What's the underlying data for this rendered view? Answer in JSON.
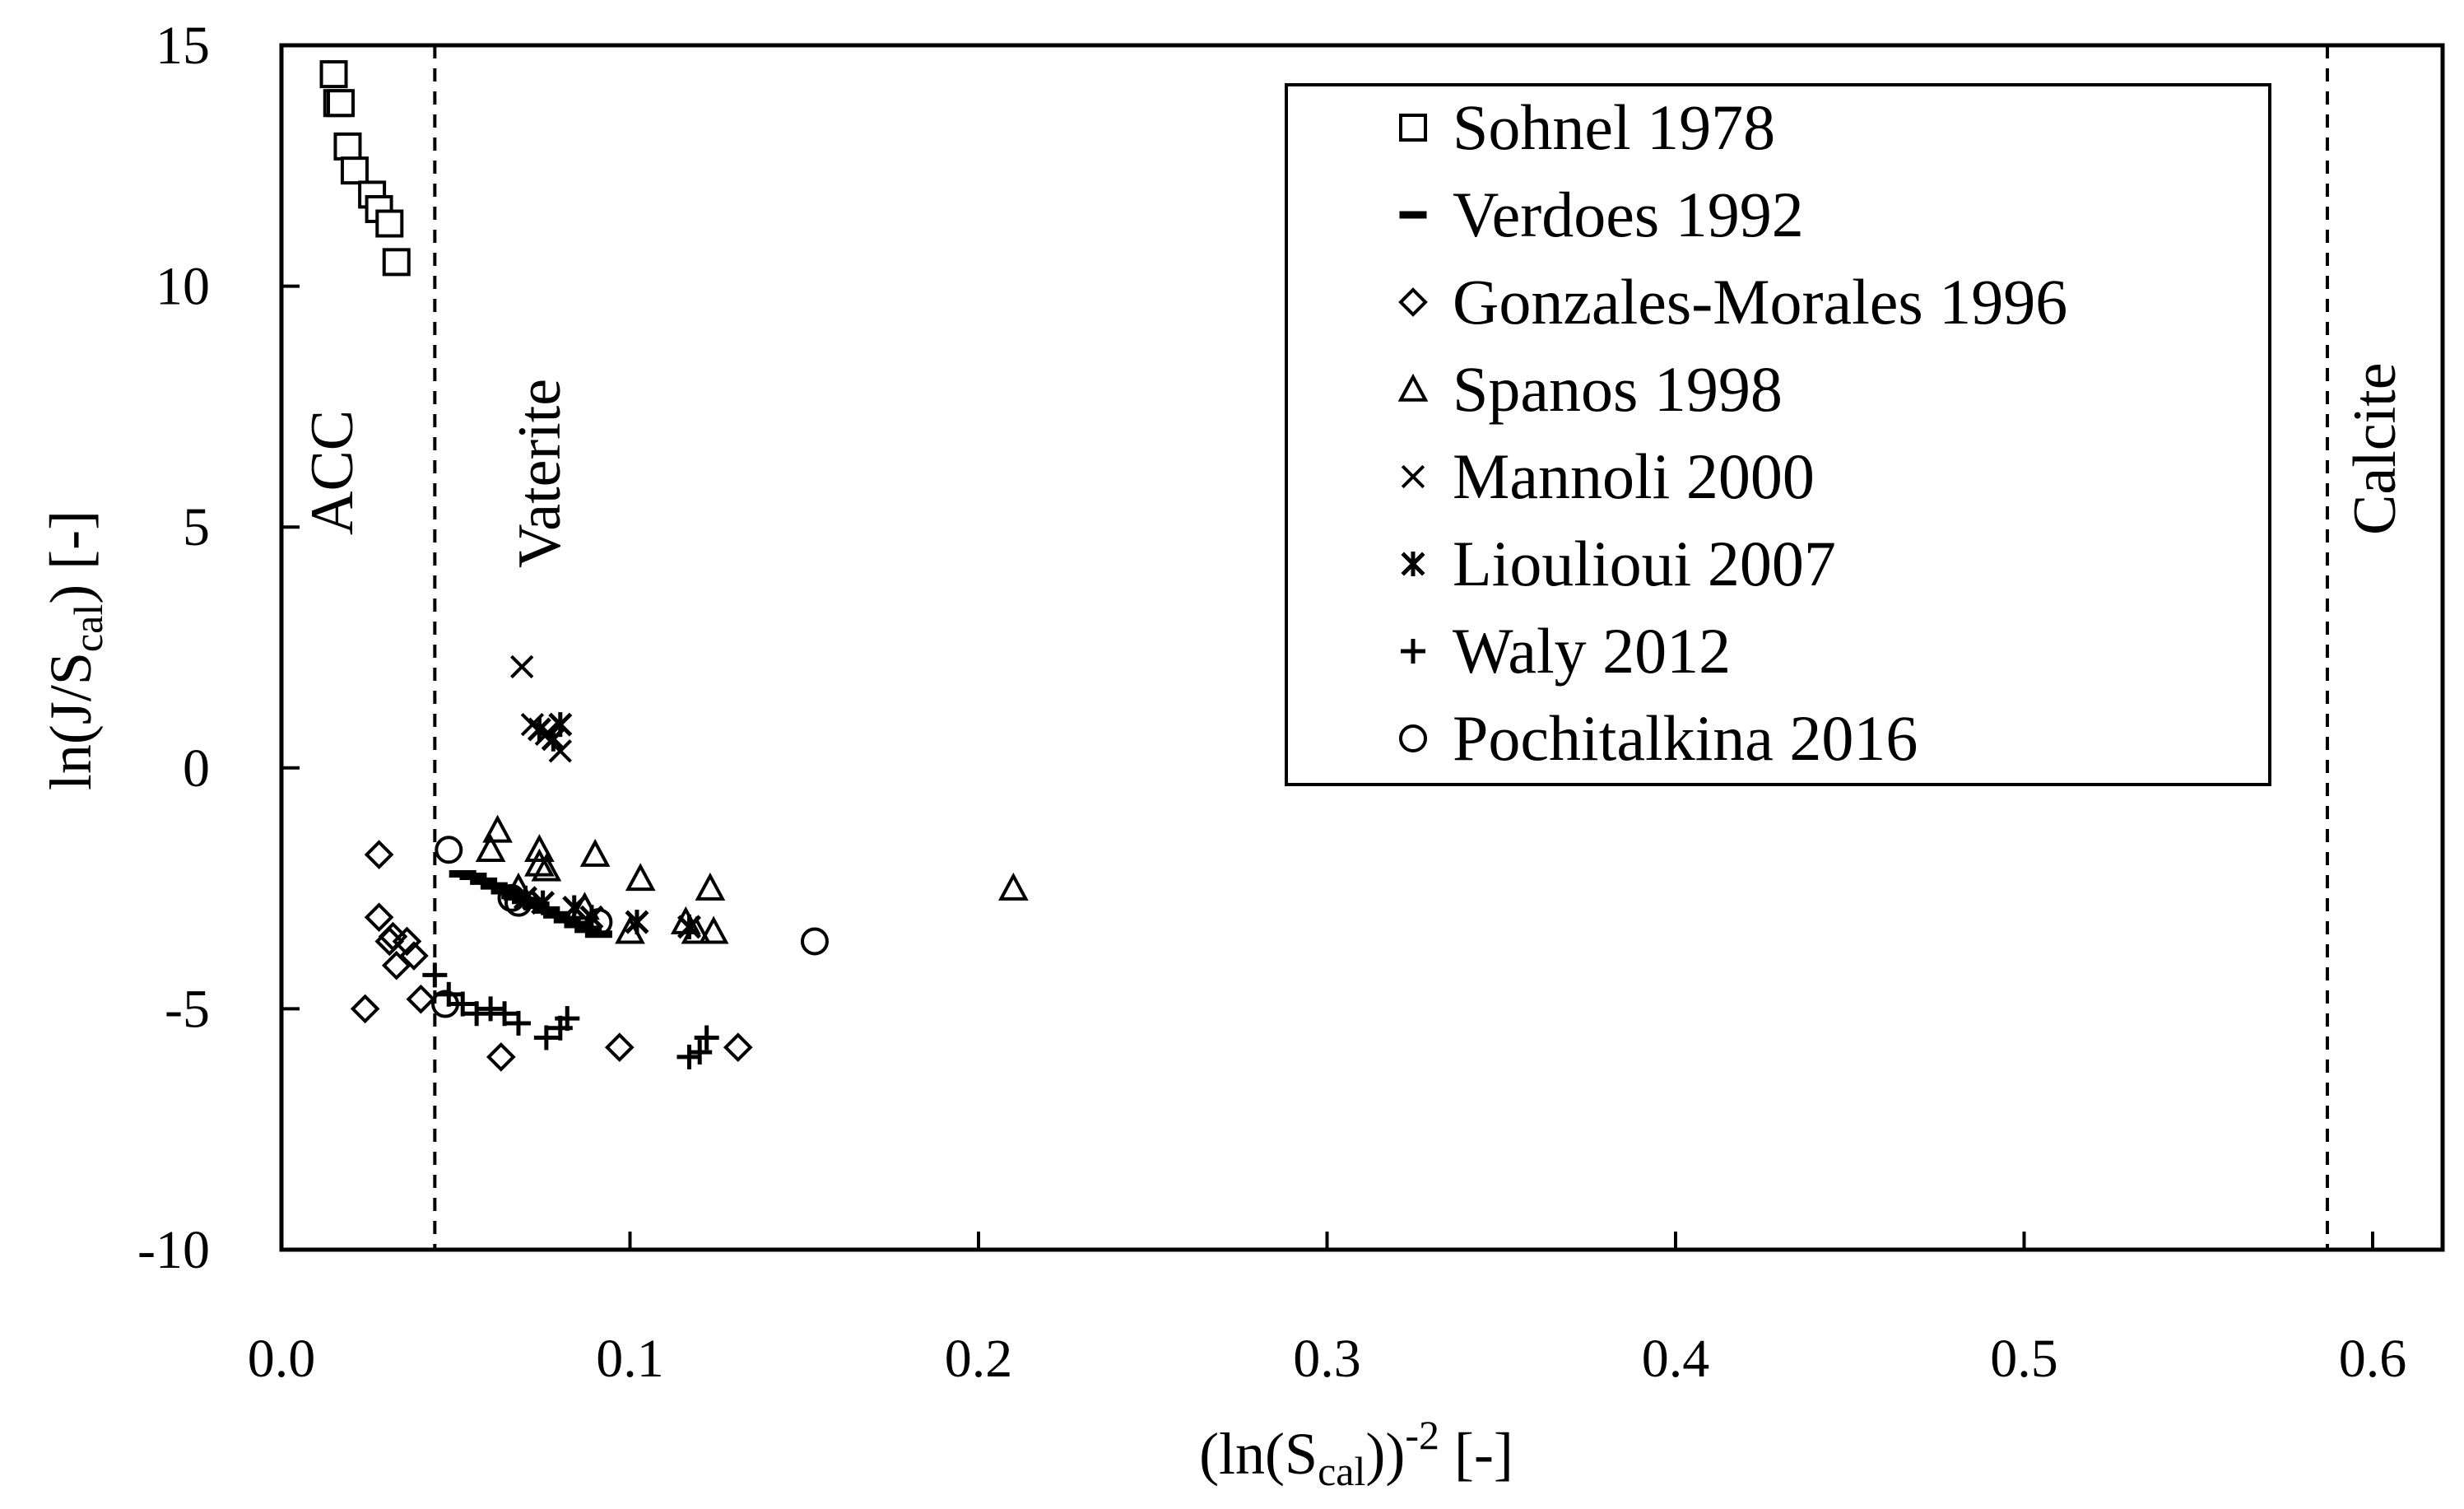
{
  "chart_data": {
    "type": "scatter",
    "title": "",
    "xlabel": "(ln(S_cal))^-2 [-]",
    "ylabel": "ln(J/S_cal) [-]",
    "xlim": [
      0.0,
      0.62
    ],
    "ylim": [
      -10,
      15
    ],
    "xticks": [
      "0.0",
      "0.1",
      "0.2",
      "0.3",
      "0.4",
      "0.5",
      "0.6"
    ],
    "xtick_values": [
      0.0,
      0.1,
      0.2,
      0.3,
      0.4,
      0.5,
      0.6
    ],
    "yticks": [
      "15",
      "10",
      "5",
      "0",
      "-5",
      "-10"
    ],
    "ytick_values": [
      15,
      10,
      5,
      0,
      -5,
      -10
    ],
    "grid": false,
    "legend_position": "top-right",
    "vlines": [
      {
        "x": 0.044,
        "label": "ACC",
        "style": "dashed"
      },
      {
        "x": 0.587,
        "label": "Calcite",
        "style": "dashed"
      }
    ],
    "region_labels": [
      "ACC",
      "Vaterite",
      "Calcite"
    ],
    "series": [
      {
        "name": "Sohnel 1978",
        "marker": "square",
        "x": [
          0.015,
          0.016,
          0.017,
          0.019,
          0.021,
          0.026,
          0.028,
          0.031,
          0.033
        ],
        "y": [
          14.4,
          13.8,
          13.8,
          12.9,
          12.4,
          11.9,
          11.6,
          11.3,
          10.5
        ]
      },
      {
        "name": "Verdoes 1992",
        "marker": "dash",
        "x": [
          0.052,
          0.055,
          0.058,
          0.061,
          0.064,
          0.067,
          0.07,
          0.073,
          0.076,
          0.079,
          0.082,
          0.085,
          0.088,
          0.091
        ],
        "y": [
          -2.2,
          -2.25,
          -2.35,
          -2.45,
          -2.55,
          -2.65,
          -2.75,
          -2.85,
          -2.95,
          -3.05,
          -3.15,
          -3.25,
          -3.35,
          -3.45
        ]
      },
      {
        "name": "Gonzales-Morales 1996",
        "marker": "diamond",
        "x": [
          0.028,
          0.028,
          0.031,
          0.032,
          0.033,
          0.036,
          0.038,
          0.04,
          0.024,
          0.063,
          0.097,
          0.131
        ],
        "y": [
          -1.8,
          -3.1,
          -3.6,
          -3.5,
          -4.1,
          -3.6,
          -3.9,
          -4.8,
          -5.0,
          -6.0,
          -5.8,
          -5.8
        ]
      },
      {
        "name": "Spanos 1998",
        "marker": "triangle",
        "x": [
          0.06,
          0.062,
          0.068,
          0.074,
          0.074,
          0.076,
          0.087,
          0.09,
          0.1,
          0.103,
          0.116,
          0.119,
          0.123,
          0.124,
          0.21
        ],
        "y": [
          -1.7,
          -1.3,
          -2.5,
          -1.7,
          -2.0,
          -2.1,
          -2.9,
          -1.8,
          -3.4,
          -2.3,
          -3.2,
          -3.4,
          -2.5,
          -3.4,
          -2.5
        ]
      },
      {
        "name": "Mannoli 2000",
        "marker": "x",
        "x": [
          0.069,
          0.072,
          0.076,
          0.078,
          0.08
        ],
        "y": [
          2.1,
          0.9,
          0.7,
          0.6,
          0.35
        ]
      },
      {
        "name": "Lioulioui 2007",
        "marker": "asterisk",
        "x": [
          0.074,
          0.078,
          0.08,
          0.07,
          0.075,
          0.084,
          0.089,
          0.102,
          0.117
        ],
        "y": [
          0.8,
          0.6,
          0.9,
          -2.7,
          -2.8,
          -2.9,
          -3.1,
          -3.2,
          -3.3
        ]
      },
      {
        "name": "Waly 2012",
        "marker": "plus",
        "x": [
          0.044,
          0.048,
          0.052,
          0.056,
          0.06,
          0.064,
          0.068,
          0.076,
          0.08,
          0.082,
          0.117,
          0.12,
          0.122
        ],
        "y": [
          -4.3,
          -4.7,
          -4.9,
          -5.1,
          -5.0,
          -5.1,
          -5.3,
          -5.6,
          -5.4,
          -5.2,
          -6.0,
          -5.9,
          -5.6
        ]
      },
      {
        "name": "Pochitalkina 2016",
        "marker": "circle",
        "x": [
          0.048,
          0.066,
          0.068,
          0.091,
          0.153,
          0.047
        ],
        "y": [
          -1.7,
          -2.7,
          -2.8,
          -3.2,
          -3.6,
          -4.9
        ]
      }
    ]
  },
  "labels": {
    "ylabel_main": "ln(J/S",
    "ylabel_sub": "cal",
    "ylabel_tail": ") [-]",
    "xlabel_main": "(ln(S",
    "xlabel_sub": "cal",
    "xlabel_mid": "))",
    "xlabel_sup": "-2",
    "xlabel_tail": " [-]",
    "region_acc": "ACC",
    "region_vaterite": "Vaterite",
    "region_calcite": "Calcite"
  },
  "legend": {
    "items": [
      {
        "label": "Sohnel 1978",
        "marker": "square"
      },
      {
        "label": "Verdoes 1992",
        "marker": "dash"
      },
      {
        "label": "Gonzales-Morales 1996",
        "marker": "diamond"
      },
      {
        "label": "Spanos 1998",
        "marker": "triangle"
      },
      {
        "label": "Mannoli 2000",
        "marker": "x"
      },
      {
        "label": "Lioulioui 2007",
        "marker": "asterisk"
      },
      {
        "label": "Waly 2012",
        "marker": "plus"
      },
      {
        "label": "Pochitalkina 2016",
        "marker": "circle"
      }
    ]
  }
}
